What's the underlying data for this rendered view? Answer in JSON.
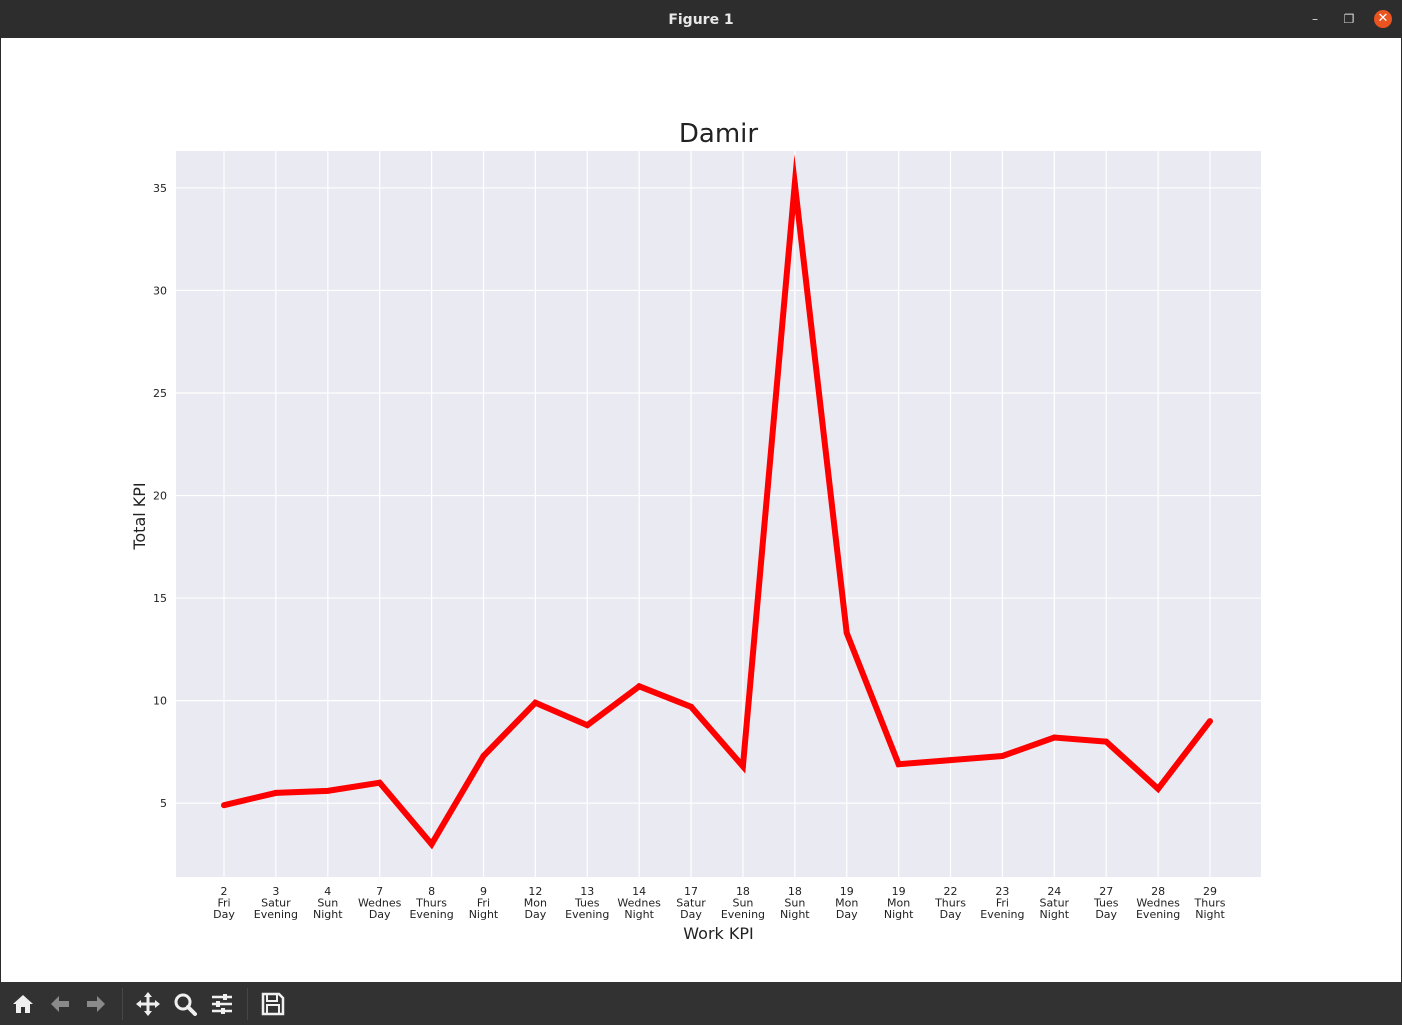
{
  "window": {
    "title": "Figure 1"
  },
  "toolbar": {
    "tools": [
      {
        "name": "home-icon"
      },
      {
        "name": "back-arrow-icon"
      },
      {
        "name": "forward-arrow-icon"
      },
      {
        "name": "pan-icon"
      },
      {
        "name": "zoom-icon"
      },
      {
        "name": "configure-subplots-icon"
      },
      {
        "name": "save-icon"
      }
    ]
  },
  "chart_data": {
    "type": "line",
    "title": "Damir",
    "xlabel": "Work KPI",
    "ylabel": "Total KPI",
    "ylim": [
      1.4,
      36.8
    ],
    "yticks": [
      5,
      10,
      15,
      20,
      25,
      30,
      35
    ],
    "grid": true,
    "line_color": "#ff0000",
    "background": "#eaeaf2",
    "categories": [
      [
        "2",
        "Fri",
        "Day"
      ],
      [
        "3",
        "Satur",
        "Evening"
      ],
      [
        "4",
        "Sun",
        "Night"
      ],
      [
        "7",
        "Wednes",
        "Day"
      ],
      [
        "8",
        "Thurs",
        "Evening"
      ],
      [
        "9",
        "Fri",
        "Night"
      ],
      [
        "12",
        "Mon",
        "Day"
      ],
      [
        "13",
        "Tues",
        "Evening"
      ],
      [
        "14",
        "Wednes",
        "Night"
      ],
      [
        "17",
        "Satur",
        "Day"
      ],
      [
        "18",
        "Sun",
        "Evening"
      ],
      [
        "18",
        "Sun",
        "Night"
      ],
      [
        "19",
        "Mon",
        "Day"
      ],
      [
        "19",
        "Mon",
        "Night"
      ],
      [
        "22",
        "Thurs",
        "Day"
      ],
      [
        "23",
        "Fri",
        "Evening"
      ],
      [
        "24",
        "Satur",
        "Night"
      ],
      [
        "27",
        "Tues",
        "Day"
      ],
      [
        "28",
        "Wednes",
        "Evening"
      ],
      [
        "29",
        "Thurs",
        "Night"
      ]
    ],
    "values": [
      4.9,
      5.5,
      5.6,
      6.0,
      3.0,
      7.3,
      9.9,
      8.8,
      10.7,
      9.7,
      6.8,
      35.2,
      13.3,
      6.9,
      7.1,
      7.3,
      8.2,
      8.0,
      5.7,
      9.0
    ]
  }
}
